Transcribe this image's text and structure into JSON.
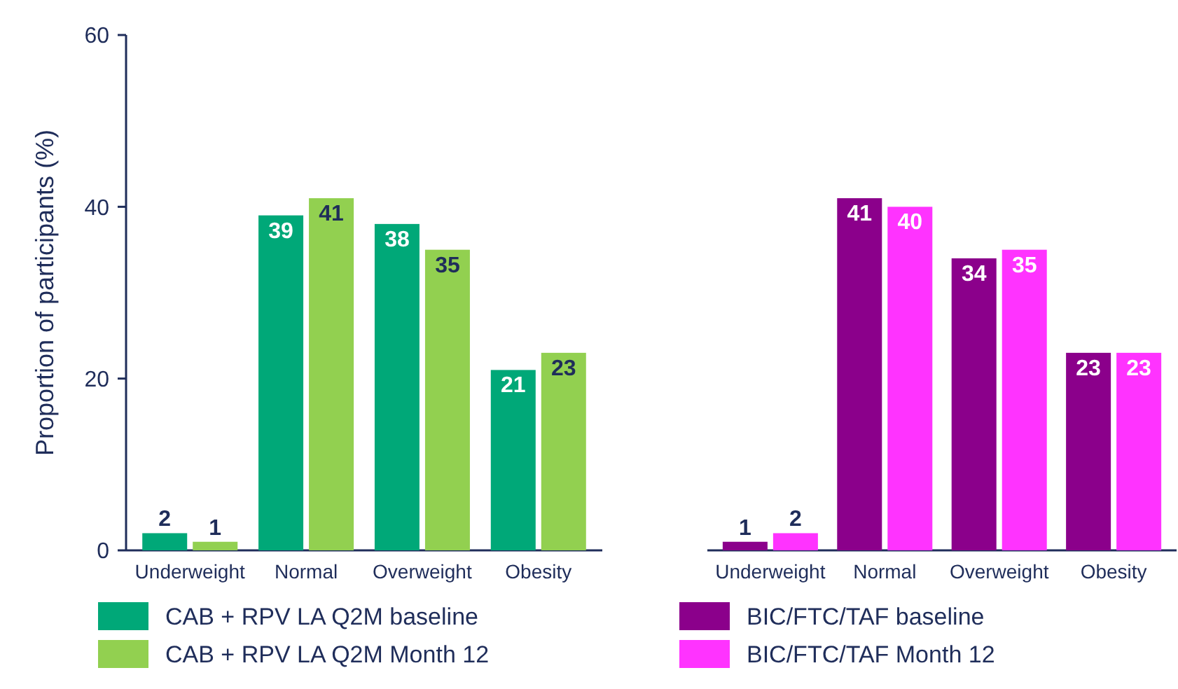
{
  "chart_data": [
    {
      "type": "bar",
      "ylabel": "Proportion of participants (%)",
      "categories": [
        "Underweight",
        "Normal",
        "Overweight",
        "Obesity"
      ],
      "ylim": [
        0,
        60
      ],
      "yticks": [
        0,
        20,
        40,
        60
      ],
      "data_labels": true,
      "legend": "bottom",
      "series": [
        {
          "name": "CAB + RPV LA Q2M baseline",
          "color": "#00a878",
          "values": [
            2,
            39,
            38,
            21
          ]
        },
        {
          "name": "CAB + RPV LA Q2M Month 12",
          "color": "#92d050",
          "values": [
            1,
            41,
            35,
            23
          ]
        }
      ]
    },
    {
      "type": "bar",
      "categories": [
        "Underweight",
        "Normal",
        "Overweight",
        "Obesity"
      ],
      "ylim": [
        0,
        60
      ],
      "yticks": [
        0,
        20,
        40,
        60
      ],
      "tick_labels": "x",
      "data_labels": true,
      "legend": "bottom",
      "series": [
        {
          "name": "BIC/FTC/TAF baseline",
          "color": "#8b008b",
          "values": [
            1,
            41,
            34,
            23
          ]
        },
        {
          "name": "BIC/FTC/TAF Month 12",
          "color": "#ff33ff",
          "values": [
            2,
            40,
            35,
            23
          ]
        }
      ]
    }
  ]
}
